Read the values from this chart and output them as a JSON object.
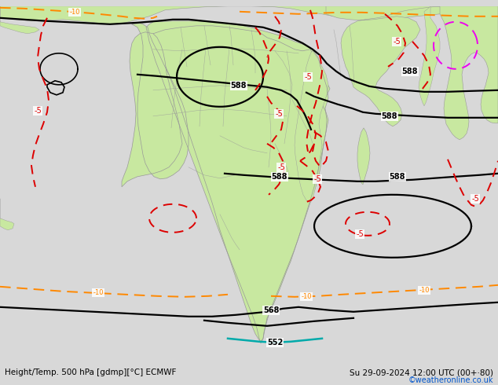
{
  "title_left": "Height/Temp. 500 hPa [gdmp][°C] ECMWF",
  "title_right": "Su 29-09-2024 12:00 UTC (00+·80)",
  "credit": "©weatheronline.co.uk",
  "ocean_color": "#d8d8d8",
  "land_color": "#c8e8a0",
  "border_color": "#999999",
  "title_color": "#000000",
  "credit_color": "#0055cc",
  "fig_width": 6.34,
  "fig_height": 4.9,
  "dpi": 100,
  "black_contour_color": "#000000",
  "red_contour_color": "#dd0000",
  "orange_contour_color": "#ff8800",
  "magenta_contour_color": "#ee00ee",
  "teal_contour_color": "#00aaaa"
}
